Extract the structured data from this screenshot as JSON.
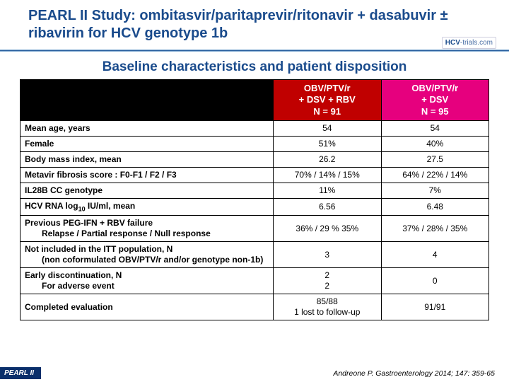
{
  "title": "PEARL II Study: ombitasvir/paritaprevir/ritonavir + dasabuvir ± ribavirin for HCV genotype 1b",
  "logo_html": "<b>HCV</b>-trials.com",
  "subtitle": "Baseline characteristics and patient disposition",
  "columns": [
    {
      "lines": [
        "OBV/PTV/r",
        "+ DSV + RBV",
        "N = 91"
      ],
      "bg": "#c00000"
    },
    {
      "lines": [
        "OBV/PTV/r",
        "+ DSV",
        "N = 95"
      ],
      "bg": "#e6007e"
    }
  ],
  "rows": [
    {
      "label": "Mean age, years",
      "c1": "54",
      "c2": "54"
    },
    {
      "label": "Female",
      "c1": "51%",
      "c2": "40%"
    },
    {
      "label": "Body mass index, mean",
      "c1": "26.2",
      "c2": "27.5"
    },
    {
      "label": "Metavir fibrosis score : F0-F1 / F2 / F3",
      "c1": "70% / 14% / 15%",
      "c2": "64% / 22% / 14%"
    },
    {
      "label": "IL28B CC genotype",
      "c1": "11%",
      "c2": "7%"
    },
    {
      "label": "HCV RNA log<sub>10</sub> IU/ml, mean",
      "c1": "6.56",
      "c2": "6.48"
    },
    {
      "label": "Previous PEG-IFN + RBV failure",
      "sub": "Relapse / Partial response / Null response",
      "c1": "36% / 29 % 35%",
      "c2": "37% / 28% / 35%"
    },
    {
      "label": "Not included in the ITT population, N",
      "sub": "(non coformulated OBV/PTV/r and/or genotype non-1b)",
      "c1": "3",
      "c2": "4"
    },
    {
      "label": "Early discontinuation, N",
      "sub": "For adverse event",
      "c1": "2<br>2",
      "c2": "0"
    },
    {
      "label": "Completed evaluation",
      "c1": "85/88<br>1 lost to follow-up",
      "c2": "91/91"
    }
  ],
  "footer_tag": "PEARL II",
  "citation": "Andreone P. Gastroenterology 2014; 147: 359-65"
}
